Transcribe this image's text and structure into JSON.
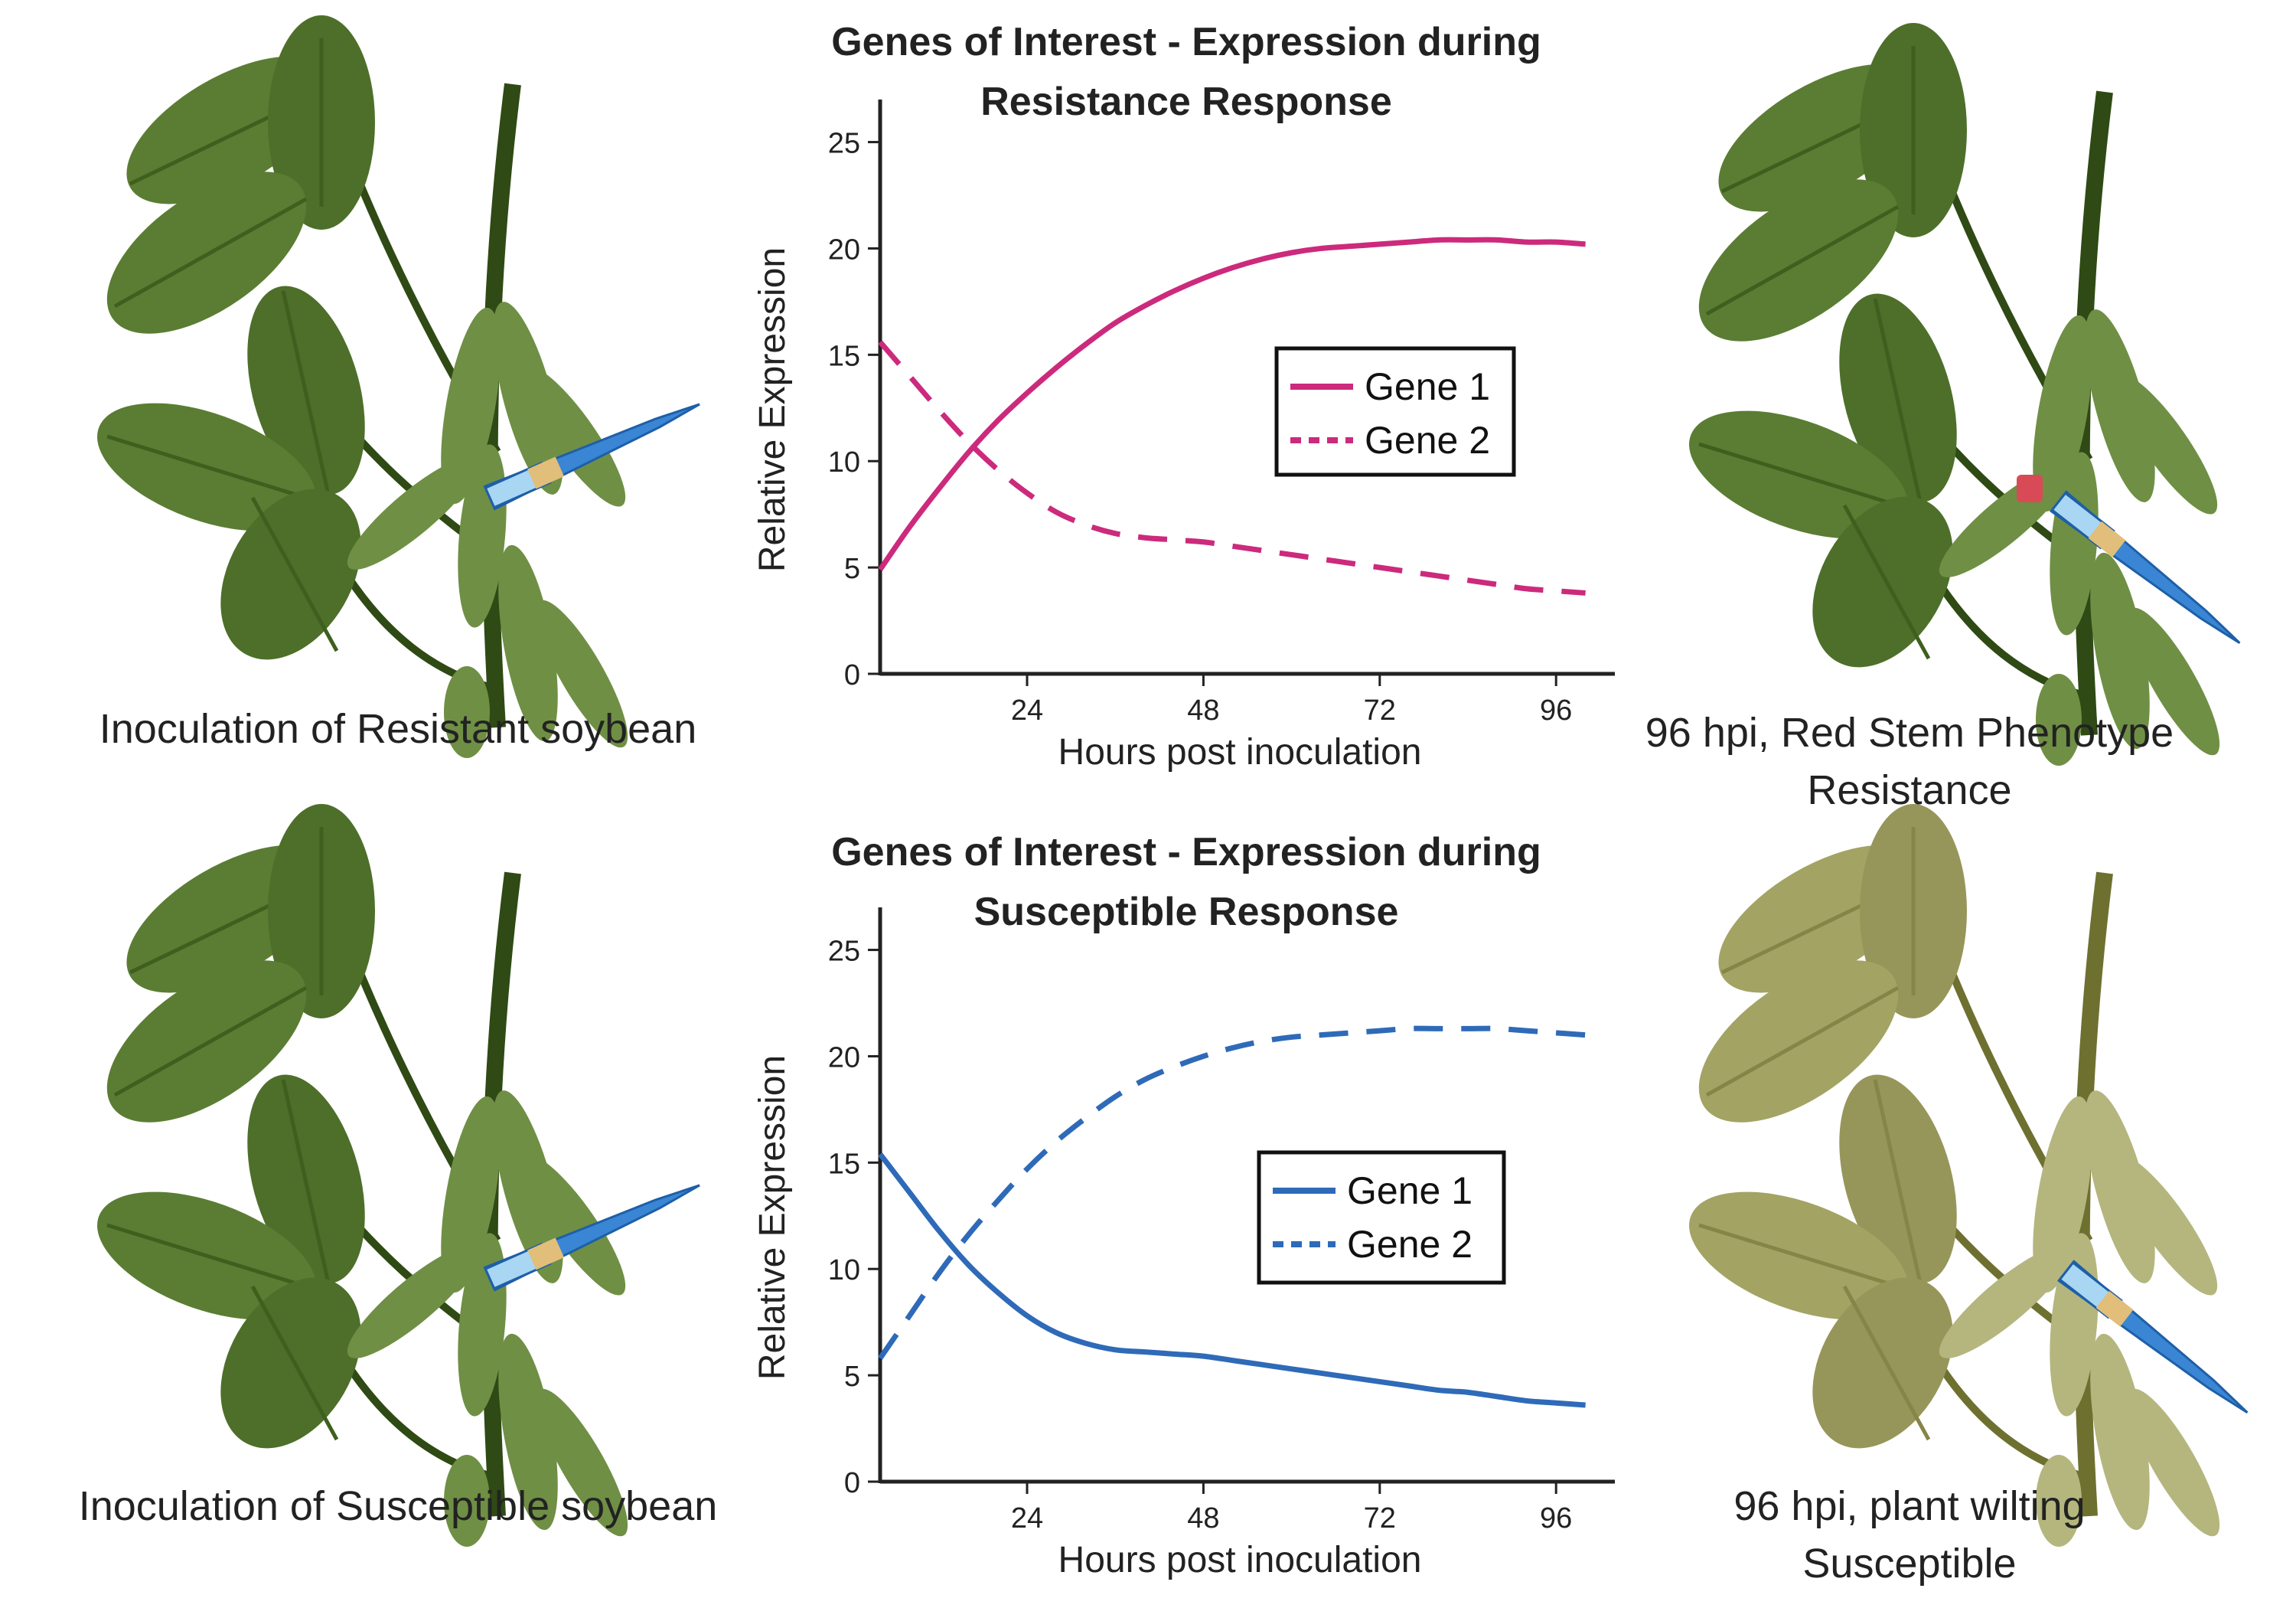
{
  "captions": {
    "resistant_inoculation": "Inoculation of Resistant soybean",
    "susceptible_inoculation": "Inoculation of Susceptible soybean",
    "resistant_outcome_line1": "96 hpi, Red Stem Phenotype",
    "resistant_outcome_line2": "Resistance",
    "susceptible_outcome_line1": "96 hpi, plant wilting",
    "susceptible_outcome_line2": "Susceptible"
  },
  "colors": {
    "resistant_series": "#cc2a7c",
    "susceptible_series": "#2e6ab8",
    "healthy_leaf": "#5a7d33",
    "healthy_leaf_dark": "#3f5f1e",
    "healthy_stem": "#2f4a14",
    "pod": "#6f8f45",
    "wilted_leaf": "#a3a364",
    "wilted_leaf_dark": "#858548",
    "wilted_stem": "#6e7030",
    "wilted_pod": "#b4b67e",
    "red_stem_spot": "#d94a57",
    "needle_blue": "#3a86d4",
    "needle_tip_tan": "#e1be7a"
  },
  "illustration_icons": [
    "soybean-plant-icon",
    "inoculation-needle-icon",
    "red-stem-lesion-icon",
    "wilted-soybean-plant-icon"
  ],
  "chart_data": [
    {
      "type": "line",
      "title_lines": [
        "Genes of Interest - Expression during",
        "Resistance Response"
      ],
      "xlabel": "Hours post inoculation",
      "ylabel": "Relative Expression",
      "xlim": [
        4,
        104
      ],
      "ylim": [
        0,
        27
      ],
      "x_ticks": [
        24,
        48,
        72,
        96
      ],
      "y_ticks": [
        0,
        5,
        10,
        15,
        20,
        25
      ],
      "legend_position": "center-right",
      "series": [
        {
          "name": "Gene 1",
          "style": "solid",
          "x": [
            4,
            8,
            12,
            16,
            20,
            24,
            28,
            32,
            36,
            40,
            44,
            48,
            52,
            56,
            60,
            64,
            68,
            72,
            76,
            80,
            84,
            88,
            92,
            96,
            100
          ],
          "y": [
            4.9,
            6.9,
            8.7,
            10.4,
            11.9,
            13.2,
            14.4,
            15.5,
            16.5,
            17.3,
            18.0,
            18.6,
            19.1,
            19.5,
            19.8,
            20.0,
            20.1,
            20.2,
            20.3,
            20.4,
            20.4,
            20.4,
            20.3,
            20.3,
            20.2
          ]
        },
        {
          "name": "Gene 2",
          "style": "dashed",
          "x": [
            4,
            8,
            12,
            16,
            20,
            24,
            28,
            32,
            36,
            40,
            44,
            48,
            52,
            56,
            60,
            64,
            68,
            72,
            76,
            80,
            84,
            88,
            92,
            96,
            100
          ],
          "y": [
            15.6,
            14.0,
            12.4,
            10.9,
            9.6,
            8.5,
            7.6,
            7.0,
            6.6,
            6.4,
            6.3,
            6.2,
            6.0,
            5.8,
            5.6,
            5.4,
            5.2,
            5.0,
            4.8,
            4.6,
            4.4,
            4.2,
            4.0,
            3.9,
            3.8
          ]
        }
      ]
    },
    {
      "type": "line",
      "title_lines": [
        "Genes of Interest - Expression during",
        "Susceptible Response"
      ],
      "xlabel": "Hours post inoculation",
      "ylabel": "Relative Expression",
      "xlim": [
        4,
        104
      ],
      "ylim": [
        0,
        27
      ],
      "x_ticks": [
        24,
        48,
        72,
        96
      ],
      "y_ticks": [
        0,
        5,
        10,
        15,
        20,
        25
      ],
      "legend_position": "center-right",
      "series": [
        {
          "name": "Gene 1",
          "style": "solid",
          "x": [
            4,
            8,
            12,
            16,
            20,
            24,
            28,
            32,
            36,
            40,
            44,
            48,
            52,
            56,
            60,
            64,
            68,
            72,
            76,
            80,
            84,
            88,
            92,
            96,
            100
          ],
          "y": [
            15.4,
            13.6,
            11.8,
            10.2,
            8.9,
            7.8,
            7.0,
            6.5,
            6.2,
            6.1,
            6.0,
            5.9,
            5.7,
            5.5,
            5.3,
            5.1,
            4.9,
            4.7,
            4.5,
            4.3,
            4.2,
            4.0,
            3.8,
            3.7,
            3.6
          ]
        },
        {
          "name": "Gene 2",
          "style": "dashed",
          "x": [
            4,
            8,
            12,
            16,
            20,
            24,
            28,
            32,
            36,
            40,
            44,
            48,
            52,
            56,
            60,
            64,
            68,
            72,
            76,
            80,
            84,
            88,
            92,
            96,
            100
          ],
          "y": [
            5.8,
            7.8,
            9.8,
            11.6,
            13.2,
            14.7,
            16.0,
            17.1,
            18.1,
            18.9,
            19.5,
            20.0,
            20.4,
            20.7,
            20.9,
            21.0,
            21.1,
            21.2,
            21.3,
            21.3,
            21.3,
            21.3,
            21.2,
            21.1,
            21.0
          ]
        }
      ]
    }
  ]
}
